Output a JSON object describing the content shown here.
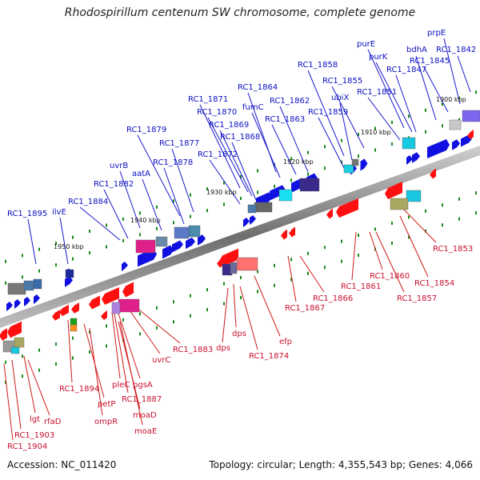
{
  "title": "Rhodospirillum centenum SW chromosome, complete genome",
  "footer": {
    "accession": "Accession: NC_011420",
    "summary": "Topology: circular; Length: 4,355,543 bp; Genes: 4,066"
  },
  "colors": {
    "forward_gene": "#1010e0",
    "reverse_gene": "#ff1010",
    "label_forward": "#0a0fc0",
    "label_reverse": "#c8102e",
    "axis": "#8a8a8a",
    "tick": "#1a8a1a"
  },
  "scale_ticks": [
    "1900 kbp",
    "1910 kbp",
    "1920 kbp",
    "1930 kbp",
    "1940 kbp",
    "1950 kbp"
  ],
  "forward_labels": [
    "prpE",
    "purE",
    "bdhA",
    "RC1_1842",
    "purK",
    "RC1_1845",
    "RC1_1858",
    "RC1_1847",
    "RC1_1855",
    "RC1_1864",
    "ubiX",
    "RC1_1851",
    "RC1_1871",
    "RC1_1862",
    "RC1_1870",
    "fumC",
    "RC1_1859",
    "RC1_1863",
    "RC1_1869",
    "RC1_1879",
    "RC1_1868",
    "RC1_1877",
    "RC1_1872",
    "uvrB",
    "RC1_1878",
    "aatA",
    "RC1_1882",
    "RC1_1884",
    "RC1_1895",
    "ilvE"
  ],
  "reverse_labels": [
    "RC1_1853",
    "RC1_1854",
    "RC1_1860",
    "RC1_1861",
    "RC1_1857",
    "RC1_1866",
    "RC1_1867",
    "efp",
    "dps",
    "dps",
    "RC1_1874",
    "RC1_1883",
    "uvrC",
    "pleC",
    "pgsA",
    "RC1_1887",
    "RC1_1894",
    "petP",
    "moaD",
    "ompR",
    "moaE",
    "lgt",
    "rfaD",
    "RC1_1903",
    "RC1_1904"
  ]
}
